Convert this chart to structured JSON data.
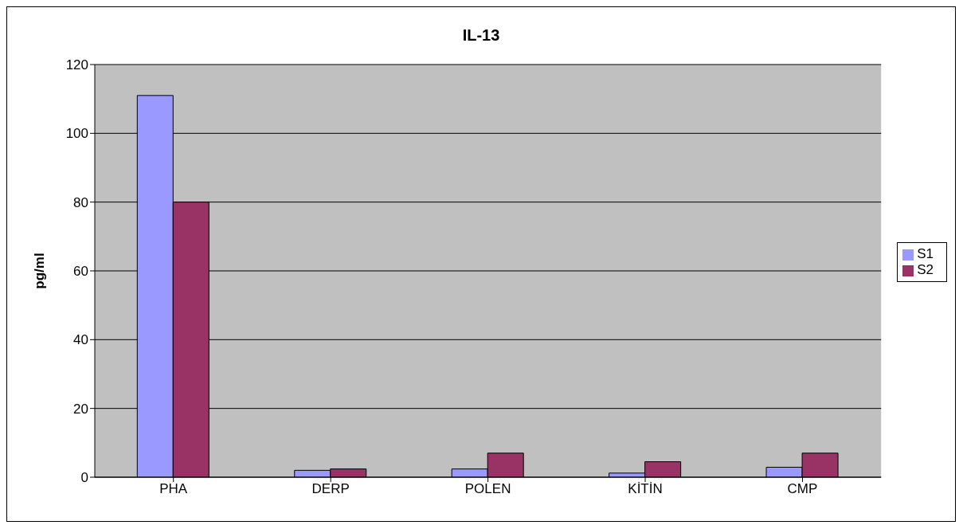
{
  "chart_data": {
    "type": "bar",
    "title": "IL-13",
    "ylabel": "pg/ml",
    "categories": [
      "PHA",
      "DERP",
      "POLEN",
      "KİTİN",
      "CMP"
    ],
    "series": [
      {
        "name": "S1",
        "color": "#9999ff",
        "values": [
          111,
          2.0,
          2.4,
          1.2,
          2.9
        ]
      },
      {
        "name": "S2",
        "color": "#993366",
        "values": [
          80,
          2.4,
          7.0,
          4.5,
          7.0
        ]
      }
    ],
    "ylim": [
      0,
      120
    ],
    "yticks": [
      0,
      20,
      40,
      60,
      80,
      100,
      120
    ],
    "grid": "y",
    "legend": "right"
  }
}
